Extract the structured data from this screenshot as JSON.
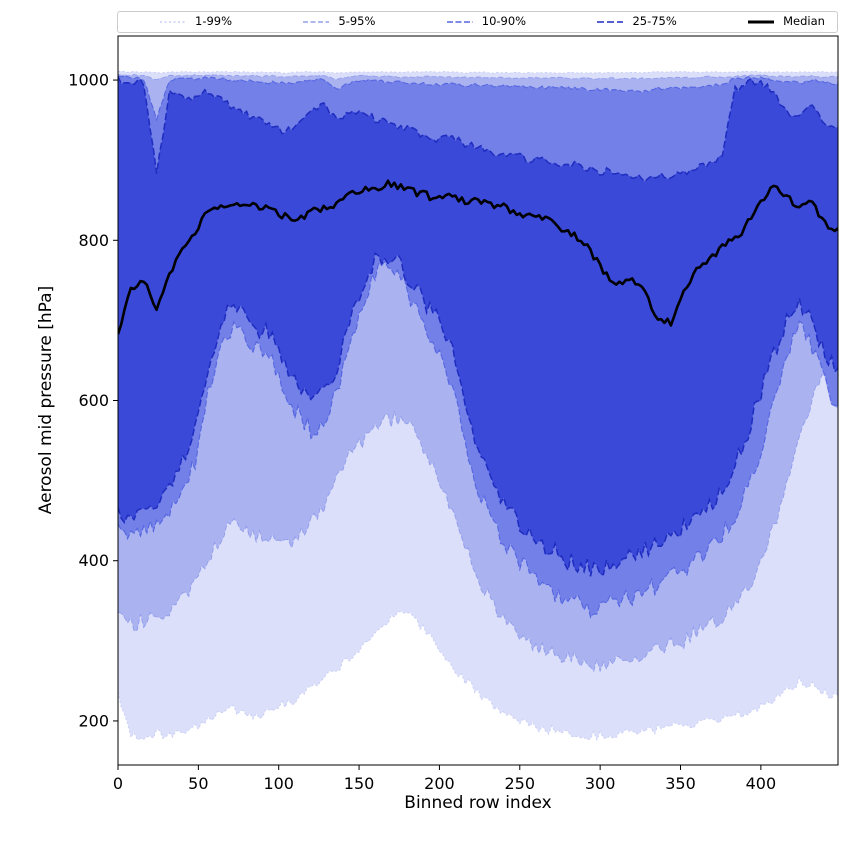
{
  "chart_data": {
    "type": "area",
    "title": "",
    "xlabel": "Binned row index",
    "ylabel": "Aerosol mid pressure [hPa]",
    "xlim": [
      0,
      448
    ],
    "ylim": [
      145,
      1055
    ],
    "xticks": [
      0,
      50,
      100,
      150,
      200,
      250,
      300,
      350,
      400
    ],
    "yticks": [
      200,
      400,
      600,
      800,
      1000
    ],
    "legend_position": "top",
    "grid": false,
    "x": [
      0,
      8,
      16,
      24,
      32,
      40,
      48,
      56,
      64,
      72,
      80,
      88,
      96,
      104,
      112,
      120,
      128,
      136,
      144,
      152,
      160,
      168,
      176,
      184,
      192,
      200,
      208,
      216,
      224,
      232,
      240,
      248,
      256,
      264,
      272,
      280,
      288,
      296,
      304,
      312,
      320,
      328,
      336,
      344,
      352,
      360,
      368,
      376,
      384,
      392,
      400,
      408,
      416,
      424,
      432,
      440,
      448
    ],
    "bands": [
      {
        "label": "1-99%",
        "lower": "p1",
        "upper": "p99",
        "fill": "#dcdff9",
        "line": "#c6cdf6",
        "dash": "2 2.5",
        "line_width": 1.0
      },
      {
        "label": "5-95%",
        "lower": "p5",
        "upper": "p95",
        "fill": "#aab3f0",
        "line": "#939fec",
        "dash": "5 2.5",
        "line_width": 1.0
      },
      {
        "label": "10-90%",
        "lower": "p10",
        "upper": "p90",
        "fill": "#7280e7",
        "line": "#5565e0",
        "dash": "6 2.5",
        "line_width": 1.1
      },
      {
        "label": "25-75%",
        "lower": "p25",
        "upper": "p75",
        "fill": "#3a49d8",
        "line": "#1f2cc0",
        "dash": "7 3",
        "line_width": 1.5
      }
    ],
    "median": {
      "label": "Median",
      "color": "#000000",
      "line_width": 2.6
    },
    "series": {
      "median": [
        680,
        742,
        748,
        718,
        758,
        788,
        812,
        838,
        846,
        842,
        845,
        841,
        836,
        830,
        826,
        836,
        841,
        846,
        856,
        862,
        866,
        872,
        866,
        860,
        856,
        851,
        856,
        846,
        851,
        846,
        841,
        836,
        831,
        826,
        821,
        811,
        801,
        781,
        756,
        746,
        751,
        736,
        701,
        696,
        741,
        761,
        776,
        791,
        801,
        821,
        846,
        866,
        856,
        841,
        846,
        821,
        815
      ],
      "p75": [
        1000,
        1000,
        996,
        885,
        984,
        979,
        976,
        986,
        975,
        966,
        956,
        950,
        941,
        936,
        946,
        960,
        970,
        951,
        956,
        960,
        951,
        946,
        941,
        936,
        931,
        926,
        931,
        921,
        916,
        911,
        906,
        906,
        901,
        901,
        896,
        896,
        891,
        886,
        886,
        881,
        881,
        876,
        881,
        881,
        886,
        891,
        896,
        906,
        988,
        1000,
        996,
        986,
        960,
        951,
        971,
        946,
        941
      ],
      "p90": [
        1005,
        1003,
        1001,
        952,
        1000,
        1002,
        1001,
        1003,
        1002,
        1000,
        999,
        998,
        997,
        996,
        998,
        1000,
        1001,
        988,
        996,
        1000,
        999,
        998,
        997,
        996,
        995,
        994,
        995,
        993,
        994,
        993,
        992,
        992,
        991,
        991,
        990,
        990,
        989,
        988,
        988,
        987,
        987,
        986,
        990,
        989,
        991,
        992,
        993,
        995,
        1002,
        1004,
        1003,
        1001,
        998,
        996,
        1000,
        997,
        996
      ],
      "p95": [
        1007,
        1006,
        1006,
        1000,
        1005,
        1006,
        1006,
        1006,
        1006,
        1005,
        1005,
        1005,
        1005,
        1004,
        1005,
        1005,
        1006,
        1001,
        1004,
        1005,
        1005,
        1005,
        1004,
        1004,
        1004,
        1004,
        1004,
        1003,
        1004,
        1003,
        1003,
        1003,
        1003,
        1003,
        1003,
        1002,
        1002,
        1002,
        1002,
        1002,
        1002,
        1002,
        1003,
        1003,
        1003,
        1003,
        1004,
        1004,
        1005,
        1006,
        1006,
        1005,
        1004,
        1004,
        1005,
        1004,
        1004
      ],
      "p99": [
        1011,
        1010,
        1010,
        1009,
        1010,
        1010,
        1010,
        1010,
        1010,
        1010,
        1010,
        1010,
        1010,
        1009,
        1010,
        1010,
        1010,
        1009,
        1010,
        1010,
        1010,
        1010,
        1010,
        1010,
        1010,
        1010,
        1010,
        1009,
        1010,
        1009,
        1009,
        1009,
        1009,
        1009,
        1009,
        1009,
        1009,
        1009,
        1009,
        1009,
        1009,
        1009,
        1010,
        1010,
        1010,
        1010,
        1010,
        1010,
        1010,
        1011,
        1010,
        1010,
        1010,
        1010,
        1010,
        1010,
        1010
      ],
      "p25": [
        455,
        450,
        460,
        472,
        490,
        520,
        560,
        640,
        700,
        722,
        702,
        690,
        680,
        642,
        620,
        602,
        612,
        642,
        700,
        742,
        775,
        780,
        770,
        742,
        720,
        700,
        660,
        600,
        540,
        500,
        470,
        450,
        432,
        420,
        410,
        400,
        395,
        390,
        395,
        400,
        406,
        412,
        420,
        430,
        440,
        456,
        470,
        490,
        520,
        560,
        610,
        660,
        700,
        722,
        700,
        660,
        640
      ],
      "p10": [
        440,
        432,
        438,
        448,
        462,
        482,
        525,
        605,
        662,
        692,
        672,
        660,
        650,
        612,
        582,
        562,
        572,
        612,
        672,
        722,
        762,
        768,
        752,
        722,
        692,
        662,
        612,
        552,
        492,
        452,
        422,
        400,
        386,
        372,
        360,
        350,
        345,
        340,
        345,
        350,
        356,
        361,
        370,
        380,
        390,
        400,
        415,
        432,
        456,
        492,
        540,
        600,
        652,
        692,
        665,
        622,
        592
      ],
      "p5": [
        330,
        320,
        325,
        330,
        340,
        350,
        370,
        400,
        430,
        452,
        440,
        430,
        425,
        420,
        430,
        450,
        470,
        500,
        530,
        550,
        562,
        575,
        580,
        560,
        530,
        500,
        460,
        420,
        380,
        350,
        330,
        315,
        300,
        290,
        285,
        280,
        275,
        270,
        272,
        275,
        278,
        282,
        288,
        295,
        300,
        310,
        320,
        330,
        345,
        365,
        395,
        440,
        500,
        560,
        600,
        640,
        620
      ],
      "p1": [
        235,
        185,
        180,
        185,
        180,
        185,
        190,
        200,
        210,
        215,
        210,
        205,
        215,
        220,
        230,
        240,
        250,
        265,
        280,
        295,
        310,
        325,
        340,
        330,
        310,
        290,
        270,
        250,
        235,
        220,
        210,
        200,
        195,
        190,
        188,
        185,
        183,
        182,
        183,
        185,
        186,
        188,
        190,
        192,
        194,
        196,
        198,
        200,
        205,
        210,
        218,
        228,
        240,
        250,
        245,
        235,
        230
      ]
    },
    "noise": {
      "p1": 6,
      "p5": 10,
      "p10": 12,
      "p25": 12,
      "median": 5,
      "p75": 5,
      "p90": 2,
      "p95": 1,
      "p99": 0.7
    }
  }
}
